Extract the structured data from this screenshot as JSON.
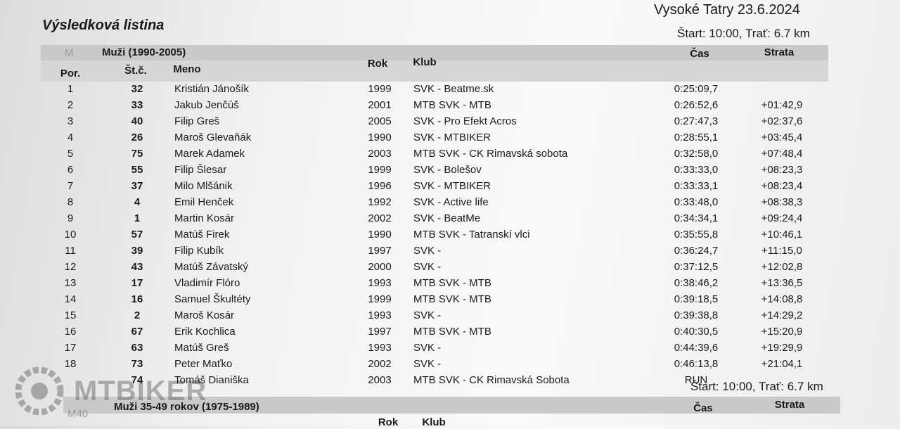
{
  "header": {
    "title": "Výsledková listina",
    "location_date": "Vysoké Tatry 23.6.2024"
  },
  "sections": [
    {
      "start_info": "Štart: 10:00, Trať: 6.7 km",
      "code": "M",
      "name": "Muži (1990-2005)",
      "columns": [
        "Por.",
        "Št.č.",
        "Meno",
        "Rok",
        "Klub",
        "Čas",
        "Strata"
      ],
      "rows": [
        [
          "1",
          "32",
          "Kristián Jánošík",
          "1999",
          "SVK - Beatme.sk",
          "0:25:09,7",
          null
        ],
        [
          "2",
          "33",
          "Jakub Jenčúš",
          "2001",
          "MTB SVK - MTB",
          "0:26:52,6",
          "+01:42,9"
        ],
        [
          "3",
          "40",
          "Filip Greš",
          "2005",
          "SVK - Pro Efekt Acros",
          "0:27:47,3",
          "+02:37,6"
        ],
        [
          "4",
          "26",
          "Maroš Glevaňák",
          "1990",
          "SVK - MTBIKER",
          "0:28:55,1",
          "+03:45,4"
        ],
        [
          "5",
          "75",
          "Marek Adamek",
          "2003",
          "MTB SVK - CK Rimavská sobota",
          "0:32:58,0",
          "+07:48,4"
        ],
        [
          "6",
          "55",
          "Filip Šlesar",
          "1999",
          "SVK - Bolešov",
          "0:33:33,0",
          "+08:23,3"
        ],
        [
          "7",
          "37",
          "Milo Mlšánik",
          "1996",
          "SVK - MTBIKER",
          "0:33:33,1",
          "+08:23,4"
        ],
        [
          "8",
          "4",
          "Emil Henček",
          "1992",
          "SVK - Active life",
          "0:33:48,0",
          "+08:38,3"
        ],
        [
          "9",
          "1",
          "Martin Kosár",
          "2002",
          "SVK - BeatMe",
          "0:34:34,1",
          "+09:24,4"
        ],
        [
          "10",
          "57",
          "Matúš Firek",
          "1990",
          "MTB SVK - Tatranskí vlci",
          "0:35:55,8",
          "+10:46,1"
        ],
        [
          "11",
          "39",
          "Filip Kubík",
          "1997",
          "SVK -",
          "0:36:24,7",
          "+11:15,0"
        ],
        [
          "12",
          "43",
          "Matúš Závatský",
          "2000",
          "SVK -",
          "0:37:12,5",
          "+12:02,8"
        ],
        [
          "13",
          "17",
          "Vladimír Flóro",
          "1993",
          "MTB SVK - MTB",
          "0:38:46,2",
          "+13:36,5"
        ],
        [
          "14",
          "16",
          "Samuel Škultéty",
          "1999",
          "MTB SVK - MTB",
          "0:39:18,5",
          "+14:08,8"
        ],
        [
          "15",
          "2",
          "Maroš Kosár",
          "1993",
          "SVK -",
          "0:39:38,8",
          "+14:29,2"
        ],
        [
          "16",
          "67",
          "Erik Kochlica",
          "1997",
          "MTB SVK - MTB",
          "0:40:30,5",
          "+15:20,9"
        ],
        [
          "17",
          "63",
          "Matúš Greš",
          "1993",
          "SVK -",
          "0:44:39,6",
          "+19:29,9"
        ],
        [
          "18",
          "73",
          "Peter Maťko",
          "2002",
          "SVK -",
          "0:46:13,8",
          "+21:04,1"
        ],
        [
          null,
          "74",
          "Tomáš Dianiška",
          "2003",
          "MTB SVK - CK Rimavská Sobota",
          "RUN",
          null
        ]
      ]
    },
    {
      "start_info": "Štart: 10:00, Trať: 6.7 km",
      "code": "M40",
      "name": "Muži 35-49 rokov (1975-1989)",
      "columns": [
        "Čas",
        "Strata",
        "Rok",
        "Klub"
      ]
    }
  ],
  "watermark": "MTBIKER"
}
